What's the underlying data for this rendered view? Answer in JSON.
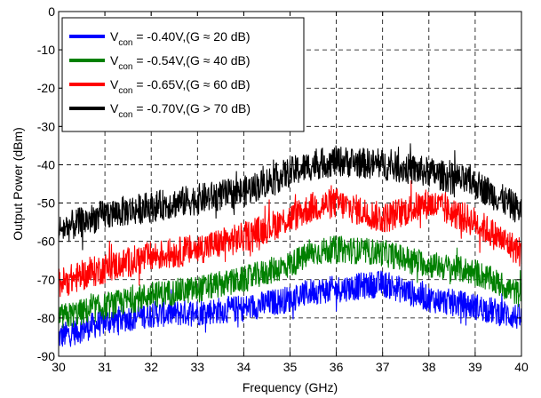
{
  "chart_data": {
    "type": "line",
    "title": "",
    "xlabel": "Frequency (GHz)",
    "ylabel": "Output Power (dBm)",
    "xlim": [
      30,
      40
    ],
    "ylim": [
      -90,
      0
    ],
    "xticks": [
      "30",
      "31",
      "32",
      "33",
      "34",
      "35",
      "36",
      "37",
      "38",
      "39",
      "40"
    ],
    "yticks": [
      "0",
      "-10",
      "-20",
      "-30",
      "-40",
      "-50",
      "-60",
      "-70",
      "-80",
      "-90"
    ],
    "grid": true,
    "legend_position": "top-left",
    "x": [
      30,
      31,
      32,
      33,
      34,
      35,
      35.5,
      36,
      37,
      38,
      39,
      40
    ],
    "series": [
      {
        "legend_main": "V",
        "legend_sub": "con",
        "legend_rest": " = -0.40V,(G ≈ 20 dB)",
        "color": "#0000ff",
        "values": [
          -85,
          -81,
          -79,
          -78.5,
          -77.5,
          -75,
          -73,
          -72.5,
          -71,
          -75,
          -77,
          -80
        ],
        "noise": 3.5
      },
      {
        "legend_main": "V",
        "legend_sub": "con",
        "legend_rest": " = -0.54V,(G ≈ 40 dB)",
        "color": "#008000",
        "values": [
          -80,
          -77,
          -74,
          -72.5,
          -70,
          -66,
          -63,
          -62,
          -63,
          -66,
          -68,
          -74
        ],
        "noise": 3.5
      },
      {
        "legend_main": "V",
        "legend_sub": "con",
        "legend_rest": " = -0.65V,(G ≈ 60 dB)",
        "color": "#ff0000",
        "values": [
          -71,
          -67,
          -64,
          -62,
          -59,
          -54,
          -51,
          -50,
          -54,
          -50,
          -55,
          -63
        ],
        "noise": 4
      },
      {
        "legend_main": "V",
        "legend_sub": "con",
        "legend_rest": " = -0.70V,(G > 70 dB)",
        "color": "#000000",
        "values": [
          -57,
          -53,
          -51,
          -49,
          -47,
          -42,
          -40,
          -39,
          -40,
          -42,
          -45,
          -52
        ],
        "noise": 4
      }
    ]
  }
}
